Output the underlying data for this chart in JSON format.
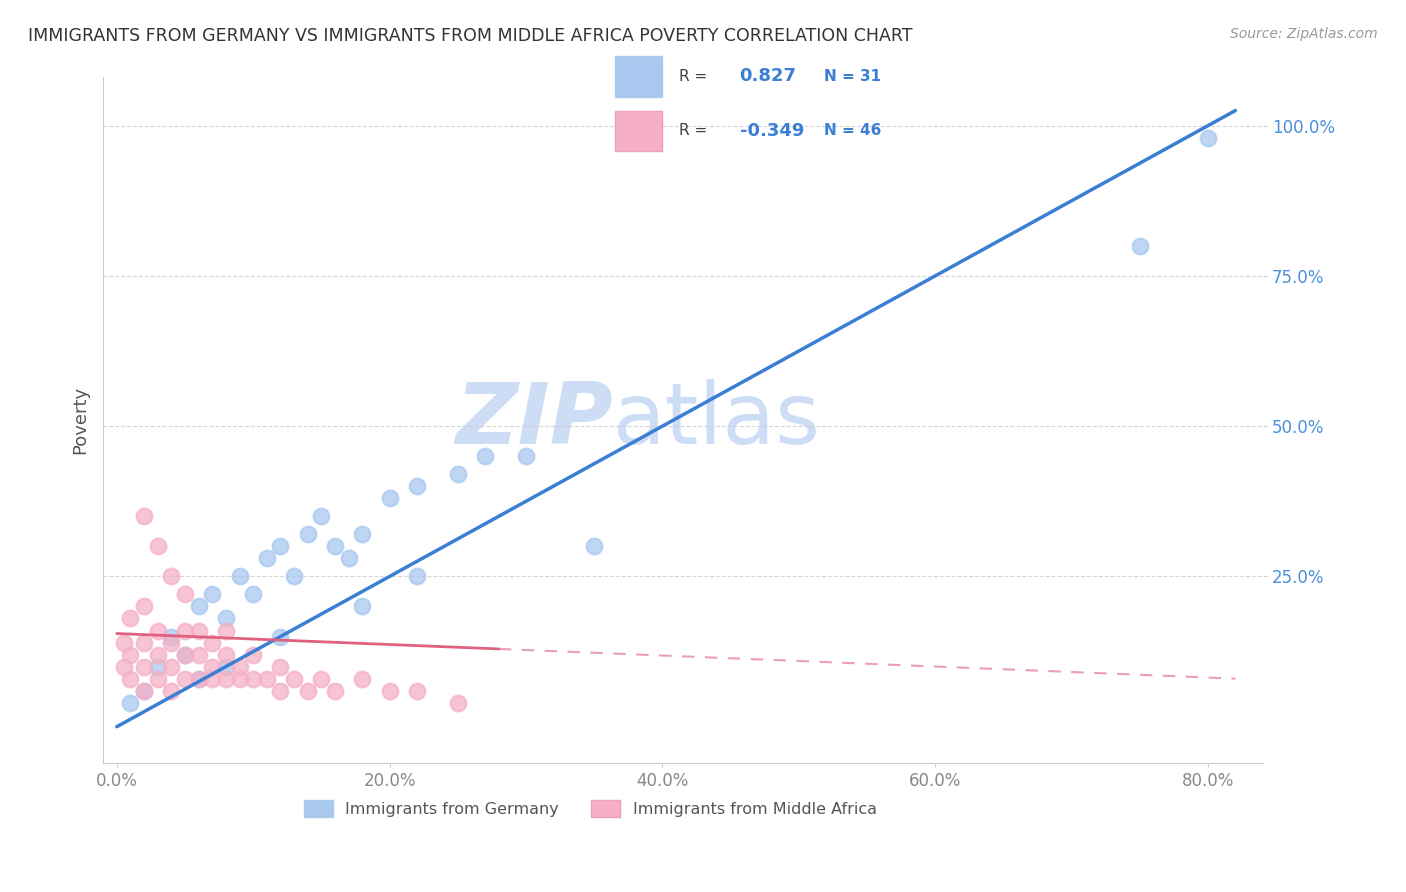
{
  "title": "IMMIGRANTS FROM GERMANY VS IMMIGRANTS FROM MIDDLE AFRICA POVERTY CORRELATION CHART",
  "source": "Source: ZipAtlas.com",
  "ylabel": "Poverty",
  "xlabel_ticks": [
    "0.0%",
    "20.0%",
    "40.0%",
    "60.0%",
    "80.0%"
  ],
  "xlabel_vals": [
    0.0,
    0.2,
    0.4,
    0.6,
    0.8
  ],
  "ytick_labels": [
    "100.0%",
    "75.0%",
    "50.0%",
    "25.0%"
  ],
  "ytick_vals": [
    1.0,
    0.75,
    0.5,
    0.25
  ],
  "xlim": [
    -0.01,
    0.84
  ],
  "ylim": [
    -0.06,
    1.08
  ],
  "germany_R": 0.827,
  "germany_N": 31,
  "middleafrica_R": -0.349,
  "middleafrica_N": 46,
  "germany_color": "#a8c8f0",
  "middleafrica_color": "#f5b0c5",
  "germany_line_color": "#3a7fd5",
  "middleafrica_line_color": "#e06080",
  "watermark_zip": "ZIP",
  "watermark_atlas": "atlas",
  "watermark_color": "#ccddf5",
  "background_color": "#ffffff",
  "germany_x": [
    0.01,
    0.02,
    0.03,
    0.04,
    0.05,
    0.06,
    0.07,
    0.08,
    0.09,
    0.1,
    0.11,
    0.12,
    0.13,
    0.14,
    0.15,
    0.16,
    0.17,
    0.18,
    0.2,
    0.22,
    0.25,
    0.27,
    0.3,
    0.35,
    0.22,
    0.18,
    0.12,
    0.08,
    0.06,
    0.75,
    0.8
  ],
  "germany_y": [
    0.04,
    0.06,
    0.1,
    0.15,
    0.12,
    0.2,
    0.22,
    0.18,
    0.25,
    0.22,
    0.28,
    0.3,
    0.25,
    0.32,
    0.35,
    0.3,
    0.28,
    0.32,
    0.38,
    0.4,
    0.42,
    0.45,
    0.45,
    0.3,
    0.25,
    0.2,
    0.15,
    0.1,
    0.08,
    0.8,
    0.98
  ],
  "middleafrica_x": [
    0.005,
    0.005,
    0.01,
    0.01,
    0.01,
    0.02,
    0.02,
    0.02,
    0.02,
    0.03,
    0.03,
    0.03,
    0.04,
    0.04,
    0.04,
    0.05,
    0.05,
    0.05,
    0.05,
    0.06,
    0.06,
    0.06,
    0.07,
    0.07,
    0.07,
    0.08,
    0.08,
    0.08,
    0.09,
    0.09,
    0.1,
    0.1,
    0.11,
    0.12,
    0.12,
    0.13,
    0.14,
    0.15,
    0.16,
    0.18,
    0.2,
    0.22,
    0.25,
    0.02,
    0.03,
    0.04
  ],
  "middleafrica_y": [
    0.1,
    0.14,
    0.08,
    0.12,
    0.18,
    0.06,
    0.1,
    0.14,
    0.2,
    0.08,
    0.12,
    0.16,
    0.06,
    0.1,
    0.14,
    0.08,
    0.12,
    0.16,
    0.22,
    0.08,
    0.12,
    0.16,
    0.08,
    0.1,
    0.14,
    0.08,
    0.12,
    0.16,
    0.08,
    0.1,
    0.08,
    0.12,
    0.08,
    0.06,
    0.1,
    0.08,
    0.06,
    0.08,
    0.06,
    0.08,
    0.06,
    0.06,
    0.04,
    0.35,
    0.3,
    0.25
  ],
  "germany_line_x0": 0.0,
  "germany_line_y0": 0.0,
  "germany_line_x1": 0.82,
  "germany_line_y1": 1.025,
  "middleafrica_line_x0": 0.0,
  "middleafrica_line_y0": 0.155,
  "middleafrica_line_x1": 0.82,
  "middleafrica_line_y1": 0.08
}
